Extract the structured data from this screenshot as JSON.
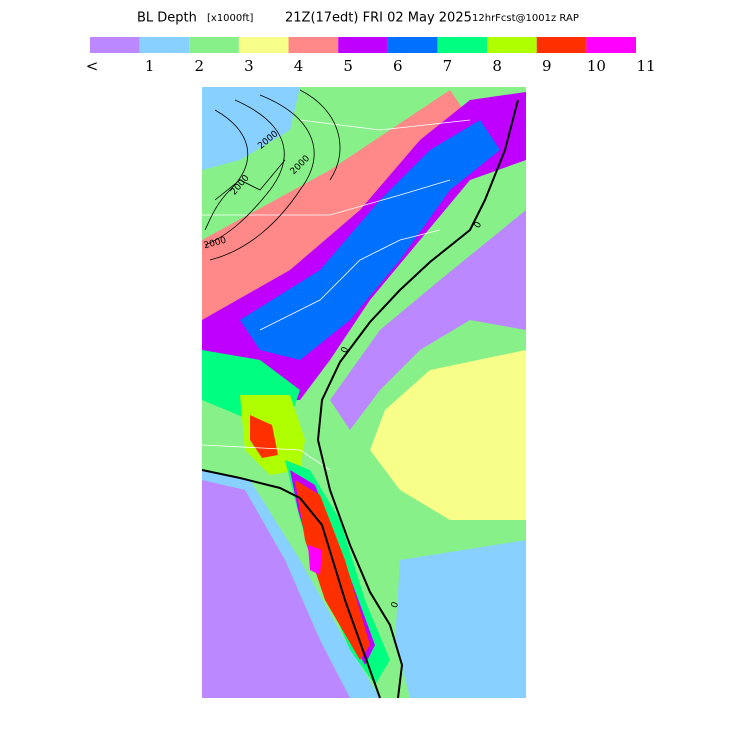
{
  "header": {
    "title": "BL Depth",
    "units": "[x1000ft]",
    "valid_time": "21Z(17edt) FRI 02 May 2025",
    "forecast": "12hrFcst@1001z RAP"
  },
  "colorbar": {
    "colors": [
      "#bb88ff",
      "#88d0ff",
      "#88f088",
      "#f8ff88",
      "#ff8888",
      "#c000ff",
      "#0070ff",
      "#00ff80",
      "#b0ff00",
      "#ff3000",
      "#ff00ff"
    ],
    "labels": [
      "<",
      "1",
      "2",
      "3",
      "4",
      "5",
      "6",
      "7",
      "8",
      "9",
      "10",
      "11"
    ]
  },
  "map": {
    "contour_labels": [
      "2000",
      "2000",
      "2000",
      "2000",
      "0",
      "0",
      "0"
    ]
  }
}
